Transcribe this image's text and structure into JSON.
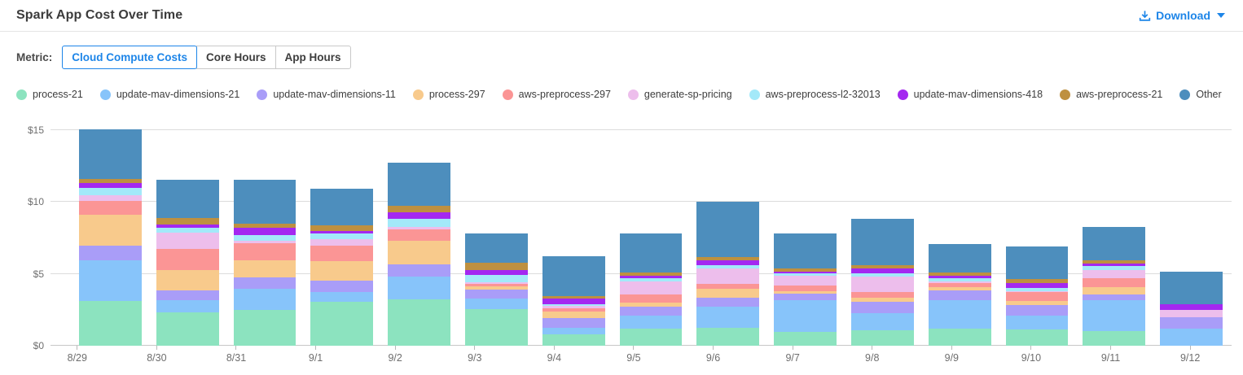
{
  "header": {
    "title": "Spark App Cost Over Time",
    "download_label": "Download"
  },
  "metric": {
    "label": "Metric:",
    "tabs": [
      {
        "label": "Cloud Compute Costs",
        "active": true
      },
      {
        "label": "Core Hours",
        "active": false
      },
      {
        "label": "App Hours",
        "active": false
      }
    ]
  },
  "colors": {
    "accent_blue": "#1d85e8",
    "gridline": "#dcdcdc",
    "axis_line": "#c7c7c7",
    "axis_text": "#6e6e6e"
  },
  "chart_data": {
    "type": "bar",
    "stacked": true,
    "title": "Spark App Cost Over Time",
    "xlabel": "",
    "ylabel": "",
    "ylim": [
      0,
      15.62
    ],
    "ytick_labels": [
      "$0",
      "$5",
      "$10",
      "$15"
    ],
    "ytick_values": [
      0,
      5,
      10,
      15
    ],
    "grid": true,
    "legend_position": "top",
    "categories": [
      "8/29",
      "8/30",
      "8/31",
      "9/1",
      "9/2",
      "9/3",
      "9/4",
      "9/5",
      "9/6",
      "9/7",
      "9/8",
      "9/9",
      "9/10",
      "9/11",
      "9/12"
    ],
    "series": [
      {
        "name": "process-21",
        "color": "#8ce3bf",
        "values": [
          3.09,
          2.31,
          2.5,
          3.05,
          3.24,
          2.55,
          0.77,
          1.19,
          1.25,
          0.97,
          1.06,
          1.19,
          1.15,
          1.01,
          0
        ]
      },
      {
        "name": "update-mav-dimensions-21",
        "color": "#87c4fa",
        "values": [
          2.88,
          0.86,
          1.45,
          0.71,
          1.6,
          0.74,
          0.46,
          0.89,
          1.49,
          2.2,
          1.21,
          1.97,
          0.97,
          2.16,
          1.18
        ]
      },
      {
        "name": "update-mav-dimensions-11",
        "color": "#a99df8",
        "values": [
          1.01,
          0.69,
          0.8,
          0.8,
          0.82,
          0.63,
          0.69,
          0.65,
          0.61,
          0.45,
          0.78,
          0.69,
          0.71,
          0.41,
          0.82
        ]
      },
      {
        "name": "process-297",
        "color": "#f8ca8c",
        "values": [
          2.12,
          1.4,
          1.19,
          1.34,
          1.64,
          0.19,
          0.46,
          0.28,
          0.6,
          0.19,
          0.3,
          0.24,
          0.28,
          0.52,
          0
        ]
      },
      {
        "name": "aws-preprocess-297",
        "color": "#fb9595",
        "values": [
          0.97,
          1.49,
          1.21,
          1.06,
          0.78,
          0.19,
          0.25,
          0.56,
          0.37,
          0.37,
          0.41,
          0.26,
          0.61,
          0.63,
          0
        ]
      },
      {
        "name": "generate-sp-pricing",
        "color": "#edbeec",
        "values": [
          0.38,
          1.15,
          0.15,
          0.48,
          0.19,
          0.1,
          0.13,
          0.89,
          1.08,
          0.67,
          1.08,
          0.11,
          0.07,
          0.52,
          0.48
        ]
      },
      {
        "name": "aws-preprocess-l2-32013",
        "color": "#a3e9f9",
        "values": [
          0.55,
          0.3,
          0.41,
          0.37,
          0.56,
          0.53,
          0.15,
          0.26,
          0.19,
          0.19,
          0.19,
          0.22,
          0.24,
          0.28,
          0
        ]
      },
      {
        "name": "update-mav-dimensions-418",
        "color": "#a428f0",
        "values": [
          0.31,
          0.22,
          0.48,
          0.19,
          0.43,
          0.3,
          0.38,
          0.15,
          0.37,
          0.13,
          0.37,
          0.19,
          0.37,
          0.19,
          0.38
        ]
      },
      {
        "name": "aws-preprocess-21",
        "color": "#be9040",
        "values": [
          0.28,
          0.47,
          0.32,
          0.37,
          0.47,
          0.51,
          0.15,
          0.22,
          0.22,
          0.19,
          0.19,
          0.22,
          0.24,
          0.22,
          0
        ]
      },
      {
        "name": "Other",
        "color": "#4d8ebd",
        "values": [
          3.5,
          2.66,
          3.02,
          2.55,
          3.02,
          2.05,
          2.78,
          2.72,
          3.82,
          2.46,
          3.24,
          2.01,
          2.31,
          2.33,
          2.27
        ]
      }
    ]
  }
}
